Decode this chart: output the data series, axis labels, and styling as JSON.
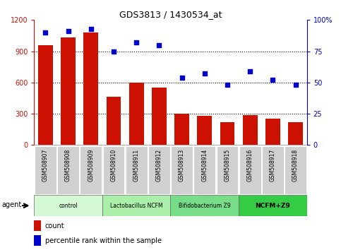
{
  "title": "GDS3813 / 1430534_at",
  "samples": [
    "GSM508907",
    "GSM508908",
    "GSM508909",
    "GSM508910",
    "GSM508911",
    "GSM508912",
    "GSM508913",
    "GSM508914",
    "GSM508915",
    "GSM508916",
    "GSM508917",
    "GSM508918"
  ],
  "counts": [
    960,
    1030,
    1080,
    460,
    600,
    550,
    300,
    280,
    220,
    290,
    255,
    220
  ],
  "percentile_ranks": [
    90,
    91,
    93,
    75,
    82,
    80,
    54,
    57,
    48,
    59,
    52,
    48
  ],
  "bar_color": "#cc1100",
  "scatter_color": "#0000cc",
  "ylim_left": [
    0,
    1200
  ],
  "ylim_right": [
    0,
    100
  ],
  "yticks_left": [
    0,
    300,
    600,
    900,
    1200
  ],
  "yticks_right": [
    0,
    25,
    50,
    75,
    100
  ],
  "ytick_labels_right": [
    "0",
    "25",
    "50",
    "75",
    "100%"
  ],
  "groups": [
    {
      "label": "control",
      "start": 0,
      "end": 3,
      "color": "#d4f7d4"
    },
    {
      "label": "Lactobacillus NCFM",
      "start": 3,
      "end": 6,
      "color": "#aaf0aa"
    },
    {
      "label": "Bifidobacterium Z9",
      "start": 6,
      "end": 9,
      "color": "#77dd88"
    },
    {
      "label": "NCFM+Z9",
      "start": 9,
      "end": 12,
      "color": "#33cc44"
    }
  ],
  "legend_count_label": "count",
  "legend_pct_label": "percentile rank within the sample",
  "agent_label": "agent",
  "left_tick_color": "#cc1100",
  "right_tick_color": "#0000cc",
  "background_color": "#ffffff",
  "sample_box_color": "#d0d0d0",
  "grid_color": "#000000"
}
